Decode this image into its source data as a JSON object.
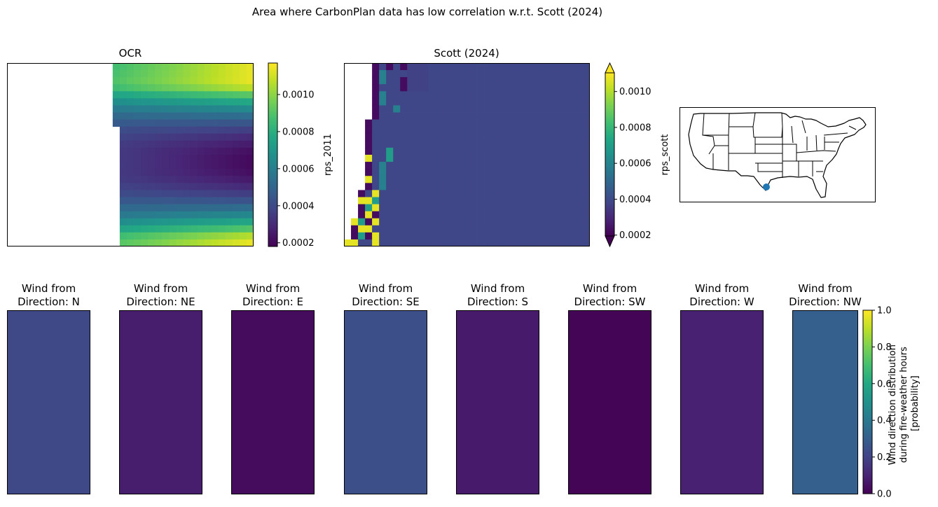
{
  "chart_data": [
    {
      "id": "ocr",
      "type": "heatmap",
      "title": "OCR",
      "cmap": "viridis",
      "colorbar": {
        "label": "rps_2011",
        "ticks": [
          0.0002,
          0.0004,
          0.0006,
          0.0008,
          0.001
        ],
        "tick_labels": [
          "0.0002",
          "0.0004",
          "0.0006",
          "0.0008",
          "0.0010"
        ],
        "vmin": 0.00018,
        "vmax": 0.00117,
        "extend": "neither"
      }
    },
    {
      "id": "scott",
      "type": "heatmap",
      "title": "Scott (2024)",
      "cmap": "viridis",
      "colorbar": {
        "label": "rps_scott",
        "ticks": [
          0.0002,
          0.0004,
          0.0006,
          0.0008,
          0.001
        ],
        "tick_labels": [
          "0.0002",
          "0.0004",
          "0.0006",
          "0.0008",
          "0.0010"
        ],
        "vmin": 0.00015,
        "vmax": 0.00119,
        "extend": "both"
      },
      "background_value": 0.00037
    },
    {
      "id": "wind",
      "type": "heatmap",
      "cmap": "viridis",
      "panels": [
        {
          "title_line1": "Wind from",
          "title_line2": "Direction: N",
          "value": 0.22
        },
        {
          "title_line1": "Wind from",
          "title_line2": "Direction: NE",
          "value": 0.08
        },
        {
          "title_line1": "Wind from",
          "title_line2": "Direction: E",
          "value": 0.03
        },
        {
          "title_line1": "Wind from",
          "title_line2": "Direction: SE",
          "value": 0.24
        },
        {
          "title_line1": "Wind from",
          "title_line2": "Direction: S",
          "value": 0.07
        },
        {
          "title_line1": "Wind from",
          "title_line2": "Direction: SW",
          "value": 0.01
        },
        {
          "title_line1": "Wind from",
          "title_line2": "Direction: W",
          "value": 0.09
        },
        {
          "title_line1": "Wind from",
          "title_line2": "Direction: NW",
          "value": 0.3
        }
      ],
      "colorbar": {
        "label_lines": [
          "Wind direction distribution",
          "during fire-weather hours",
          "[probability]"
        ],
        "ticks": [
          0.0,
          0.2,
          0.4,
          0.6,
          0.8,
          1.0
        ],
        "tick_labels": [
          "0.0",
          "0.2",
          "0.4",
          "0.6",
          "0.8",
          "1.0"
        ],
        "vmin": 0.0,
        "vmax": 1.0
      }
    }
  ],
  "suptitle": "Area where CarbonPlan data has low correlation w.r.t. Scott (2024)",
  "map": {
    "marker_color": "#1f77b4"
  }
}
